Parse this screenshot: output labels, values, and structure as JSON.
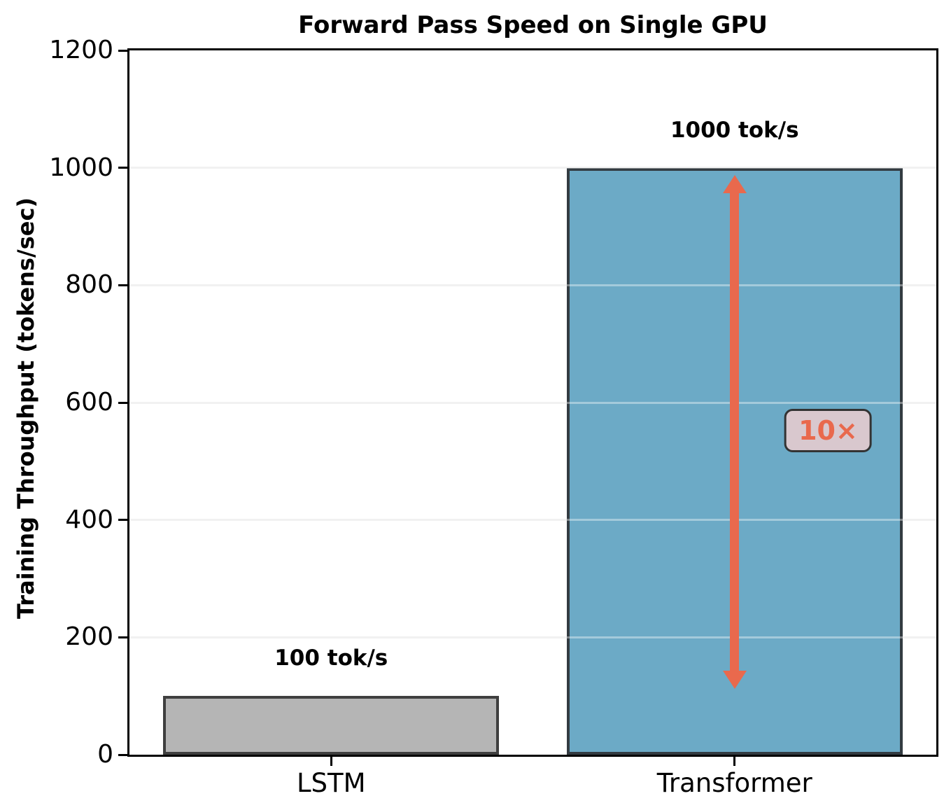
{
  "title": "Forward Pass Speed on Single GPU",
  "chart_data": {
    "type": "bar",
    "title": "Forward Pass Speed on Single GPU",
    "categories": [
      "LSTM",
      "Transformer"
    ],
    "values": [
      100,
      1000
    ],
    "bar_labels": [
      "100 tok/s",
      "1000 tok/s"
    ],
    "xlabel": "",
    "ylabel": "Training Throughput (tokens/sec)",
    "ylim": [
      0,
      1200
    ],
    "yticks": [
      0,
      200,
      400,
      600,
      800,
      1000,
      1200
    ],
    "grid": "horizontal-light",
    "legend": "none",
    "bar_colors": [
      "#b5b5b5",
      "#6caac6"
    ],
    "bar_edge_colors": [
      "#3f3f3f",
      "#333b41"
    ],
    "bar_centers_frac": [
      0.25,
      0.75
    ],
    "bar_width_frac": 0.4163,
    "annotation": {
      "text": "10×",
      "text_color": "#e9694d",
      "box_fill": "#d9c8ce",
      "box_edge": "#333333",
      "arrow_color": "#e9694d",
      "arrow_x_frac": 0.75,
      "arrow_y_top_value": 988,
      "arrow_y_bottom_value": 112,
      "badge_x_frac": 0.866,
      "badge_y_value": 552
    }
  }
}
